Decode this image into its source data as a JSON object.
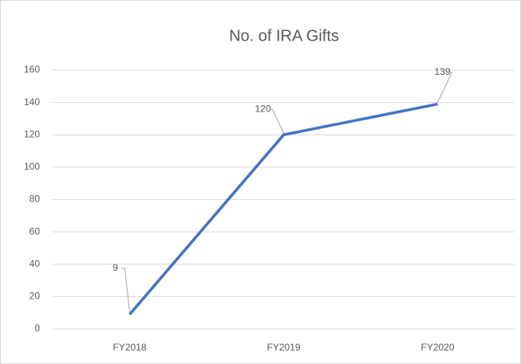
{
  "chart_data": {
    "type": "line",
    "title": "No. of IRA Gifts",
    "categories": [
      "FY2018",
      "FY2019",
      "FY2020"
    ],
    "series": [
      {
        "name": "No. of IRA Gifts",
        "color": "#4472c4",
        "values": [
          9,
          120,
          139
        ]
      }
    ],
    "ylim": [
      0,
      160
    ],
    "yticks": [
      0,
      20,
      40,
      60,
      80,
      100,
      120,
      140,
      160
    ],
    "grid": true
  }
}
